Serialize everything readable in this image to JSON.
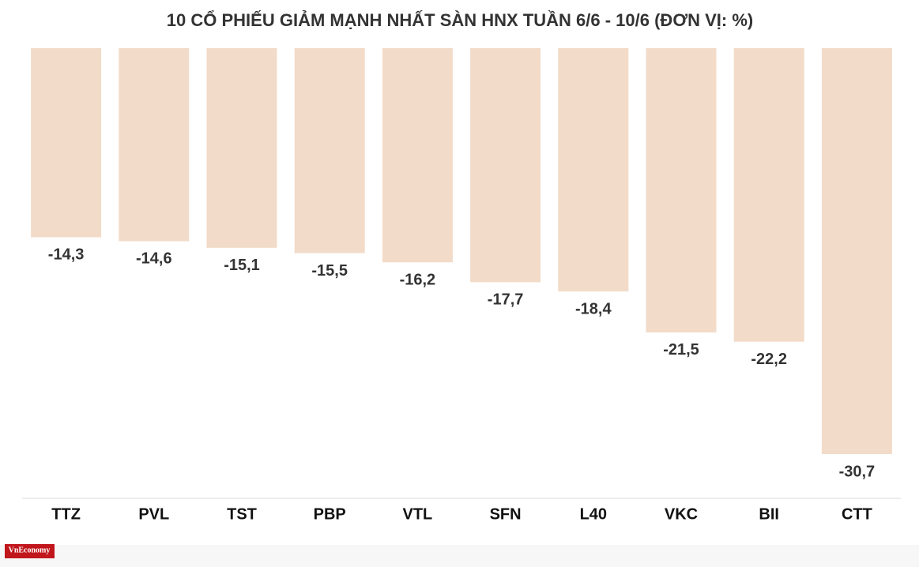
{
  "chart_data": {
    "type": "bar",
    "title": "10 CỔ PHIẾU GIẢM MẠNH NHẤT SÀN HNX TUẦN 6/6 - 10/6 (ĐƠN VỊ: %)",
    "categories": [
      "TTZ",
      "PVL",
      "TST",
      "PBP",
      "VTL",
      "SFN",
      "L40",
      "VKC",
      "BII",
      "CTT"
    ],
    "values": [
      -14.3,
      -14.6,
      -15.1,
      -15.5,
      -16.2,
      -17.7,
      -18.4,
      -21.5,
      -22.2,
      -30.7
    ],
    "value_labels": [
      "-14,3",
      "-14,6",
      "-15,1",
      "-15,5",
      "-16,2",
      "-17,7",
      "-18,4",
      "-21,5",
      "-22,2",
      "-30,7"
    ],
    "color": "#f2dbc8"
  },
  "logo": "VnEconomy"
}
